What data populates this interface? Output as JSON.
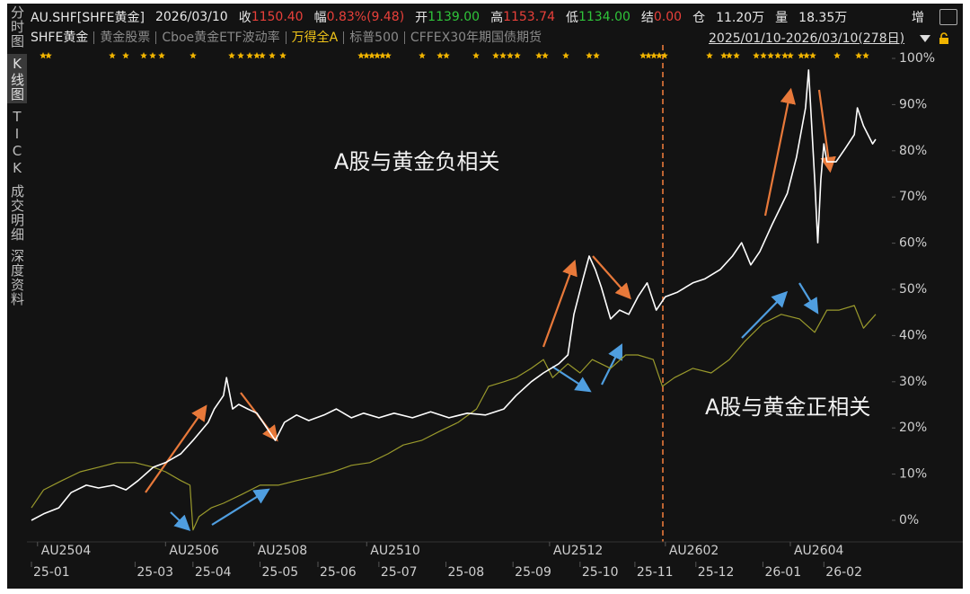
{
  "header": {
    "items": [
      {
        "text": "AU.SHF[SHFE黄金]"
      },
      {
        "text": "2026/03/10"
      },
      {
        "text": "收"
      },
      {
        "text": "1150.40",
        "color": "#e8403a"
      },
      {
        "text": "幅"
      },
      {
        "text": "0.83%(9.48)",
        "color": "#e8403a"
      },
      {
        "text": "开"
      },
      {
        "text": "1139.00",
        "color": "#2fc43a"
      },
      {
        "text": "高"
      },
      {
        "text": "1153.74",
        "color": "#e8403a"
      },
      {
        "text": "低"
      },
      {
        "text": "1134.00",
        "color": "#2fc43a"
      },
      {
        "text": "结"
      },
      {
        "text": "0.00",
        "color": "#e8403a"
      },
      {
        "text": "仓"
      },
      {
        "text": "11.20万"
      },
      {
        "text": "量"
      },
      {
        "text": "18.35万"
      }
    ],
    "right_label": "增",
    "inactive_indicators": [
      "黄金股票",
      "Cboe黄金ETF波动率",
      "标普500",
      "CFFEX30年期国债期货"
    ],
    "date_range": "2025/01/10-2026/03/10(278日)"
  },
  "side_tabs": [
    "分时图",
    "K线图",
    "TICK",
    "成交明细",
    "深度资料"
  ],
  "chart_data": {
    "type": "line",
    "xlim": [
      0,
      277
    ],
    "xticks": [
      {
        "value": 0,
        "label": "25-01"
      },
      {
        "value": 34,
        "label": "25-03"
      },
      {
        "value": 53,
        "label": "25-04"
      },
      {
        "value": 75,
        "label": "25-05"
      },
      {
        "value": 94,
        "label": "25-06"
      },
      {
        "value": 114,
        "label": "25-07"
      },
      {
        "value": 136,
        "label": "25-08"
      },
      {
        "value": 158,
        "label": "25-09"
      },
      {
        "value": 180,
        "label": "25-10"
      },
      {
        "value": 198,
        "label": "25-11"
      },
      {
        "value": 218,
        "label": "25-12"
      },
      {
        "value": 240,
        "label": "26-01"
      },
      {
        "value": 260,
        "label": "26-02"
      }
    ],
    "contract_ticks": [
      {
        "value": 2,
        "label": "AU2504"
      },
      {
        "value": 44,
        "label": "AU2506"
      },
      {
        "value": 73,
        "label": "AU2508"
      },
      {
        "value": 110,
        "label": "AU2510"
      },
      {
        "value": 170,
        "label": "AU2512"
      },
      {
        "value": 208,
        "label": "AU2602"
      },
      {
        "value": 249,
        "label": "AU2604"
      }
    ],
    "ylim": [
      0,
      100
    ],
    "yticks": [
      {
        "value": 0,
        "label": "0%"
      },
      {
        "value": 10,
        "label": "10%"
      },
      {
        "value": 20,
        "label": "20%"
      },
      {
        "value": 30,
        "label": "30%"
      },
      {
        "value": 40,
        "label": "40%"
      },
      {
        "value": 50,
        "label": "50%"
      },
      {
        "value": 60,
        "label": "60%"
      },
      {
        "value": 70,
        "label": "70%"
      },
      {
        "value": 80,
        "label": "80%"
      },
      {
        "value": 90,
        "label": "90%"
      },
      {
        "value": 100,
        "label": "100%"
      }
    ],
    "grid": false,
    "annotations": [
      "A股与黄金负相关",
      "A股与黄金正相关"
    ],
    "series": [
      {
        "name": "SHFE黄金",
        "color": "#ffffff",
        "legend_color": "#e6e6e6",
        "x": [
          0,
          4,
          9,
          13,
          18,
          22,
          27,
          31,
          35,
          40,
          44,
          49,
          53,
          58,
          60,
          63,
          64,
          66,
          68,
          71,
          74,
          77,
          80,
          83,
          87,
          91,
          96,
          100,
          105,
          109,
          114,
          119,
          125,
          131,
          137,
          143,
          149,
          155,
          159,
          164,
          168,
          173,
          176,
          178,
          181,
          183,
          185,
          187,
          190,
          193,
          196,
          199,
          202,
          205,
          208,
          212,
          217,
          221,
          226,
          230,
          233,
          236,
          239,
          243,
          248,
          251,
          254,
          255,
          257,
          258,
          259,
          260,
          261,
          264,
          267,
          270,
          271,
          273,
          276,
          277
        ],
        "values": [
          0,
          1.4,
          2.7,
          6.0,
          7.6,
          7.0,
          7.6,
          6.6,
          8.6,
          11.5,
          12.5,
          14.4,
          17.3,
          21.2,
          24.1,
          27.0,
          30.9,
          24.1,
          25.1,
          24.1,
          23.2,
          20.2,
          17.3,
          21.2,
          22.8,
          21.6,
          22.8,
          24.1,
          22.2,
          23.2,
          22.2,
          23.2,
          22.2,
          23.5,
          22.2,
          23.2,
          22.8,
          24.1,
          27.0,
          30.0,
          31.9,
          33.9,
          35.8,
          44.6,
          52.3,
          57.2,
          54.3,
          50.4,
          43.6,
          45.5,
          44.6,
          48.4,
          51.4,
          45.5,
          48.4,
          49.4,
          51.4,
          52.3,
          54.3,
          57.2,
          60.1,
          55.3,
          58.2,
          64.0,
          70.8,
          78.6,
          89.3,
          97.5,
          73.7,
          60.1,
          73.7,
          81.5,
          77.6,
          77.6,
          80.5,
          83.5,
          89.3,
          85.4,
          81.5,
          82.5
        ]
      },
      {
        "name": "万得全A",
        "color": "#9a9a2c",
        "legend_color": "#f0c419",
        "x": [
          0,
          4,
          10,
          16,
          22,
          28,
          34,
          40,
          44,
          49,
          52,
          53,
          55,
          59,
          63,
          69,
          75,
          81,
          87,
          93,
          99,
          105,
          111,
          117,
          122,
          128,
          134,
          140,
          146,
          150,
          155,
          159,
          164,
          168,
          171,
          176,
          180,
          184,
          190,
          195,
          199,
          204,
          207,
          211,
          217,
          223,
          229,
          234,
          240,
          246,
          252,
          257,
          261,
          265,
          270,
          273,
          277
        ],
        "values": [
          2.7,
          6.6,
          8.6,
          10.5,
          11.5,
          12.5,
          12.5,
          11.5,
          10.5,
          8.6,
          7.6,
          -2.1,
          0.8,
          2.7,
          3.7,
          5.6,
          7.6,
          7.6,
          8.6,
          9.5,
          10.5,
          11.9,
          12.5,
          14.4,
          16.3,
          17.3,
          19.3,
          21.2,
          24.1,
          29.0,
          30.0,
          30.9,
          32.9,
          34.8,
          30.9,
          33.9,
          31.9,
          34.8,
          32.9,
          35.8,
          35.8,
          34.8,
          29.0,
          30.9,
          32.9,
          31.9,
          34.8,
          38.7,
          42.6,
          44.6,
          43.6,
          40.7,
          45.5,
          45.5,
          46.5,
          41.6,
          44.6
        ]
      }
    ]
  }
}
